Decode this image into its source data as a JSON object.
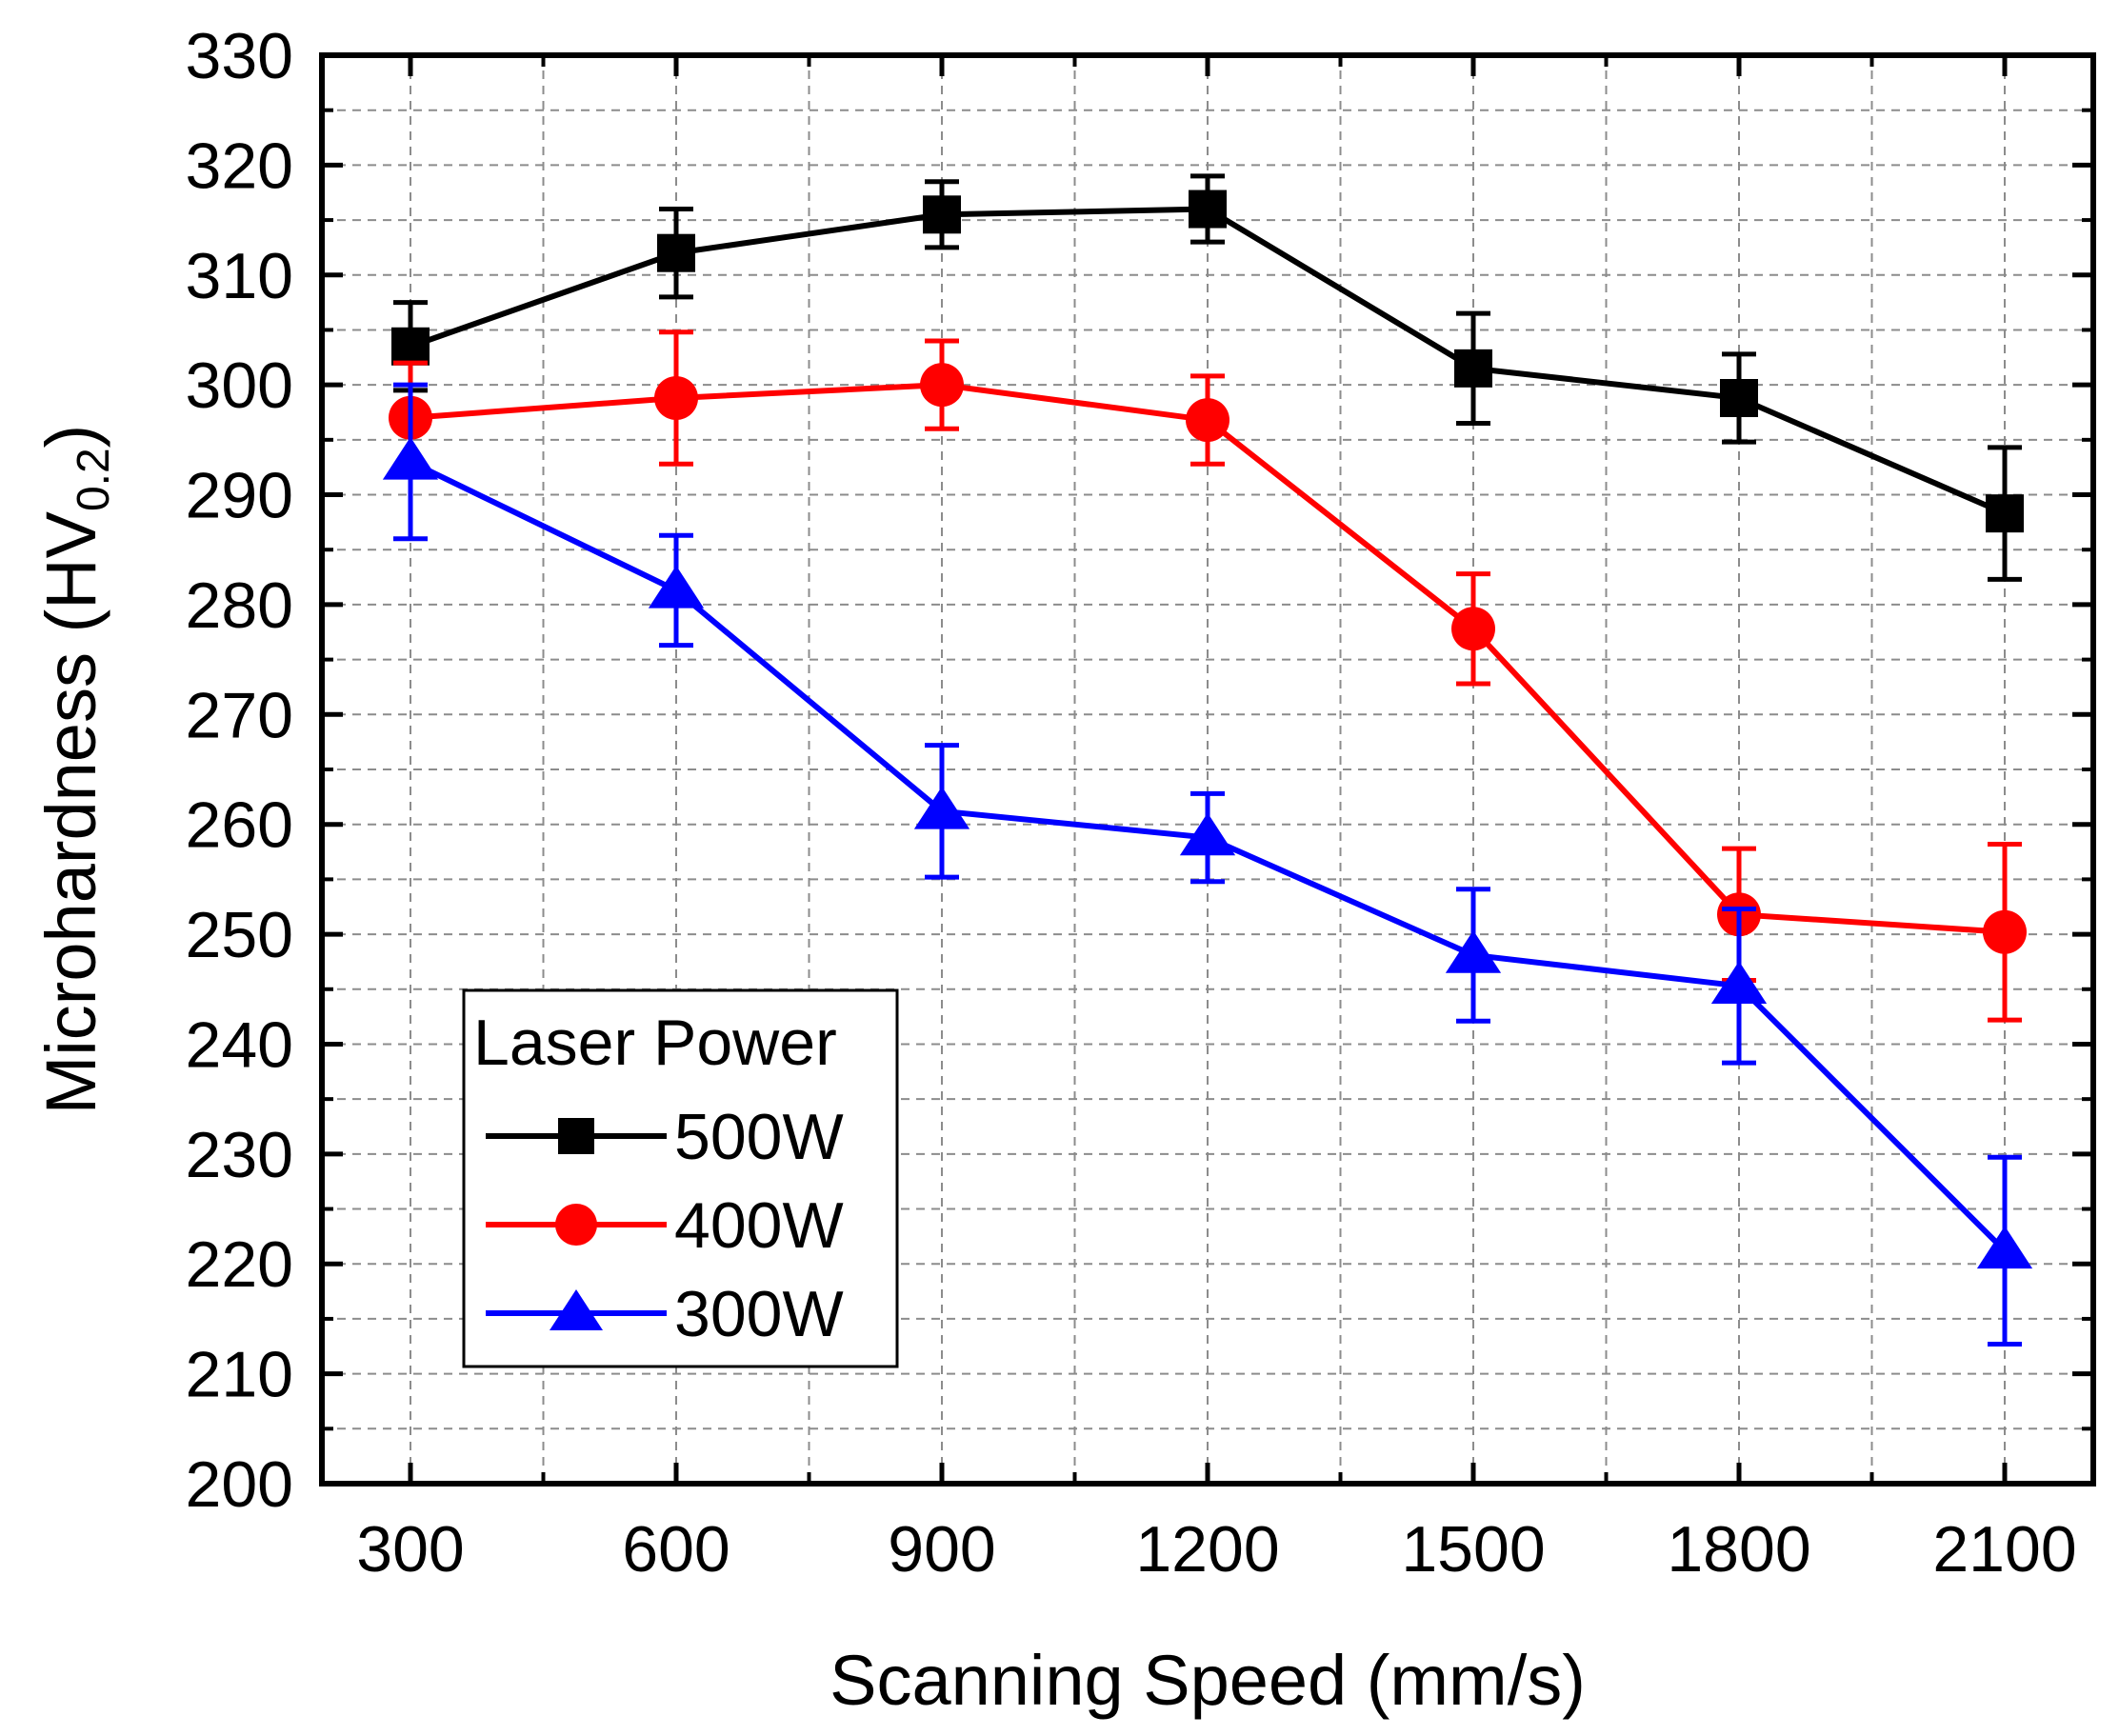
{
  "chart_data": {
    "type": "line",
    "xlabel": "Scanning Speed (mm/s)",
    "ylabel": {
      "main": "Microhardness (HV",
      "subscript": "0.2",
      "close": ")"
    },
    "x": [
      300,
      600,
      900,
      1200,
      1500,
      1800,
      2100
    ],
    "xlim": [
      200,
      2200
    ],
    "ylim": [
      200,
      330
    ],
    "xticks": [
      "300",
      "600",
      "900",
      "1200",
      "1500",
      "1800",
      "2100"
    ],
    "yticks": [
      "200",
      "210",
      "220",
      "230",
      "240",
      "250",
      "260",
      "270",
      "280",
      "290",
      "300",
      "310",
      "320",
      "330"
    ],
    "grid": true,
    "legend": {
      "title": "Laser Power",
      "placement": "bottom-left"
    },
    "series": [
      {
        "name": "500W",
        "color": "#000000",
        "marker": "square",
        "values": [
          303.5,
          312,
          315.5,
          316,
          301.5,
          298.8,
          288.3
        ],
        "errors": [
          4,
          4,
          3,
          3,
          5,
          4,
          6
        ]
      },
      {
        "name": "400W",
        "color": "#ff0000",
        "marker": "circle",
        "values": [
          297,
          298.8,
          300,
          296.8,
          277.8,
          251.8,
          250.2
        ],
        "errors": [
          5,
          6,
          4,
          4,
          5,
          6,
          8
        ]
      },
      {
        "name": "300W",
        "color": "#0000ff",
        "marker": "triangle",
        "values": [
          293,
          281.3,
          261.2,
          258.8,
          248.1,
          245.3,
          221.2
        ],
        "errors": [
          7,
          5,
          6,
          4,
          6,
          7,
          8.5
        ]
      }
    ]
  }
}
